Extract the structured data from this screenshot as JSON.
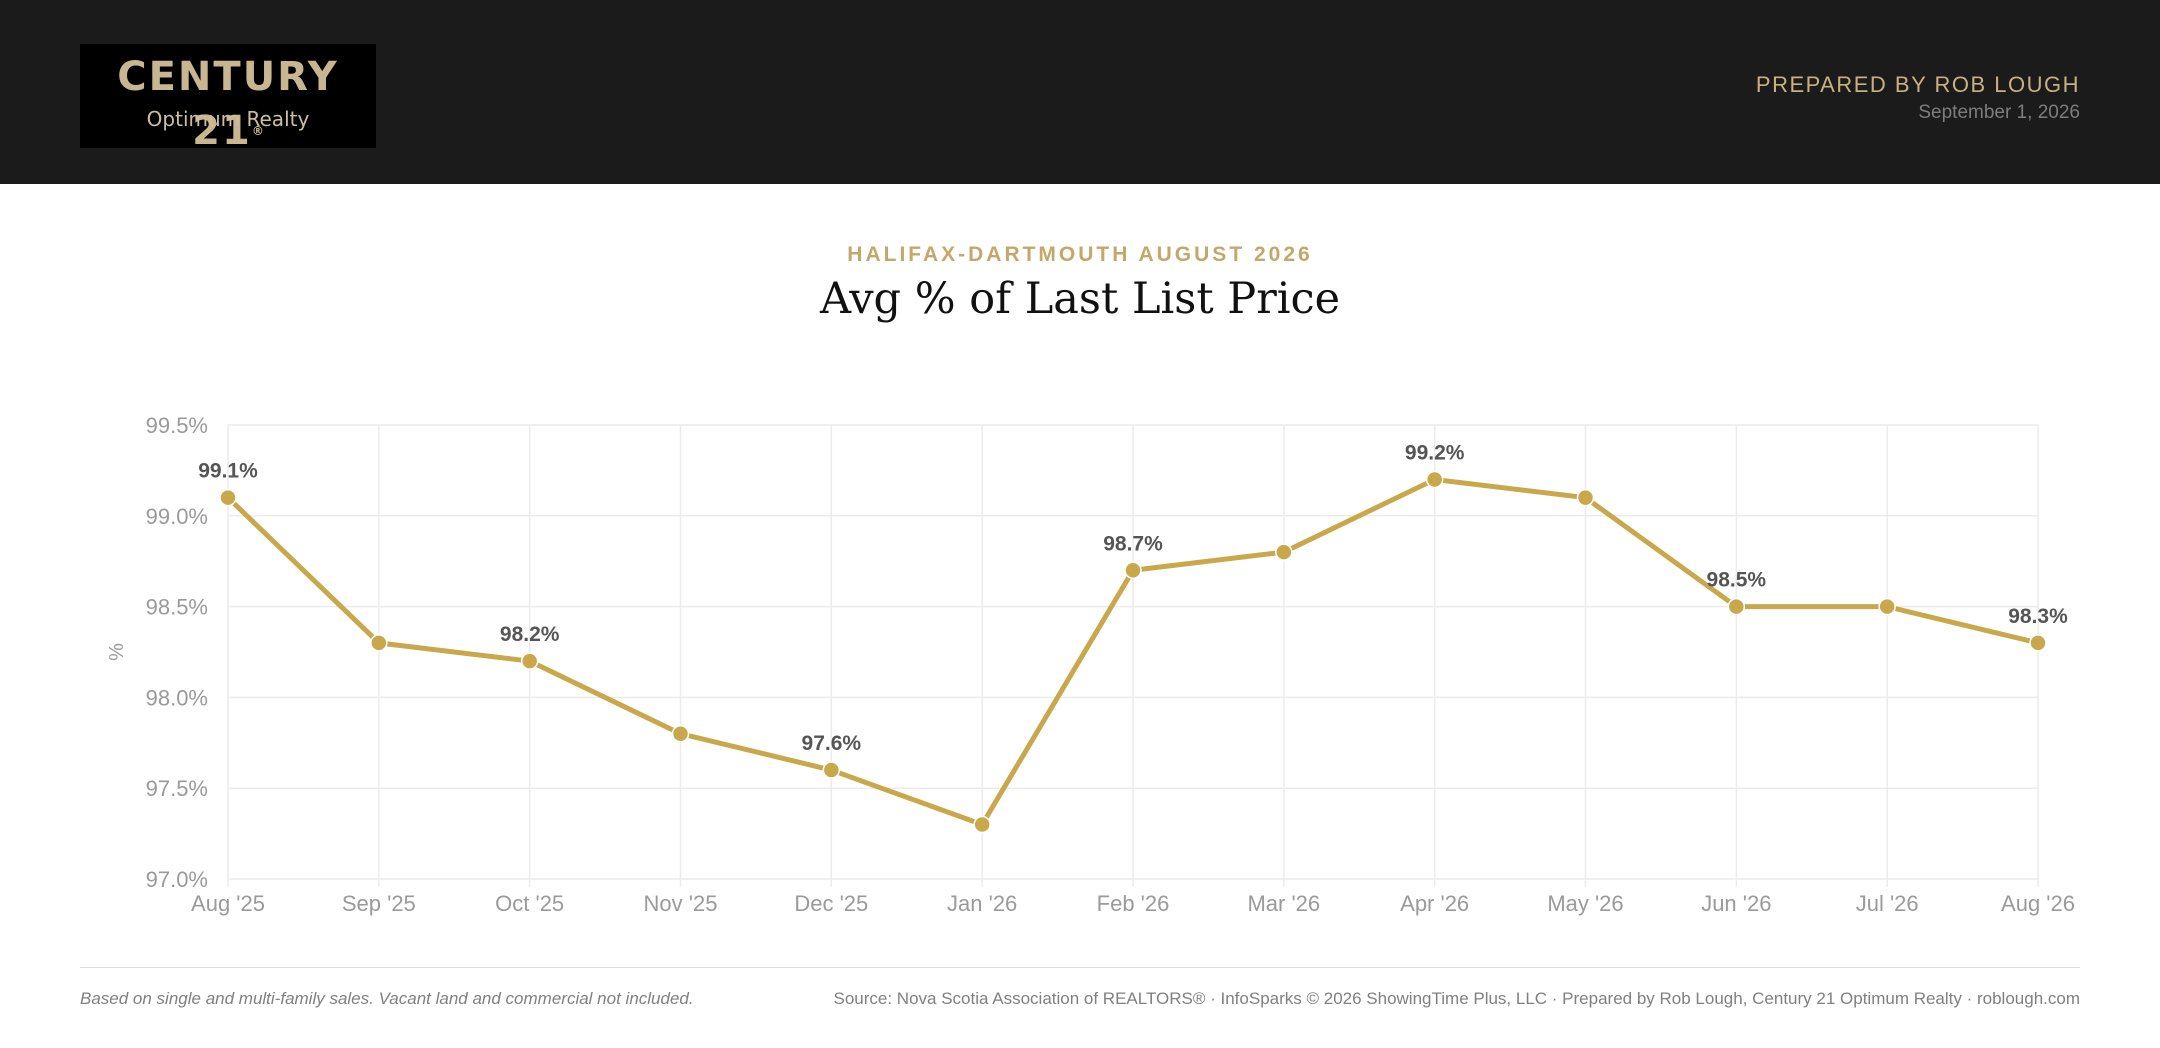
{
  "header": {
    "logo_brand": "CENTURY 21",
    "logo_reg": "®",
    "logo_sub": "Optimum Realty",
    "prepared_by": "PREPARED BY ROB LOUGH",
    "date": "September 1, 2026"
  },
  "colors": {
    "header_bg": "#1b1b1b",
    "accent_gold": "#c9a84c",
    "subtitle_gold": "#c4a76a",
    "grid": "#ececec",
    "tick_text": "#9a9a9a",
    "data_label": "#555555"
  },
  "chart_data": {
    "type": "line",
    "subtitle": "HALIFAX-DARTMOUTH AUGUST 2026",
    "title": "Avg % of Last List Price",
    "xlabel": "",
    "ylabel": "%",
    "ylim": [
      97.0,
      99.5
    ],
    "yticks": [
      97.0,
      97.5,
      98.0,
      98.5,
      99.0,
      99.5
    ],
    "ytick_labels": [
      "97.0%",
      "97.5%",
      "98.0%",
      "98.5%",
      "99.0%",
      "99.5%"
    ],
    "categories": [
      "Aug '25",
      "Sep '25",
      "Oct '25",
      "Nov '25",
      "Dec '25",
      "Jan '26",
      "Feb '26",
      "Mar '26",
      "Apr '26",
      "May '26",
      "Jun '26",
      "Jul '26",
      "Aug '26"
    ],
    "values": [
      99.1,
      98.3,
      98.2,
      97.8,
      97.6,
      97.3,
      98.7,
      98.8,
      99.2,
      99.1,
      98.5,
      98.5,
      98.3
    ],
    "data_labels": [
      {
        "index": 0,
        "text": "99.1%"
      },
      {
        "index": 2,
        "text": "98.2%"
      },
      {
        "index": 4,
        "text": "97.6%"
      },
      {
        "index": 6,
        "text": "98.7%"
      },
      {
        "index": 8,
        "text": "99.2%"
      },
      {
        "index": 10,
        "text": "98.5%"
      },
      {
        "index": 12,
        "text": "98.3%"
      }
    ],
    "grid": true,
    "legend": false
  },
  "footer": {
    "note": "Based on single and multi-family sales. Vacant land and commercial not included.",
    "source": "Source: Nova Scotia Association of REALTORS® · InfoSparks © 2026 ShowingTime Plus, LLC · Prepared by Rob Lough, Century 21 Optimum Realty · roblough.com"
  }
}
